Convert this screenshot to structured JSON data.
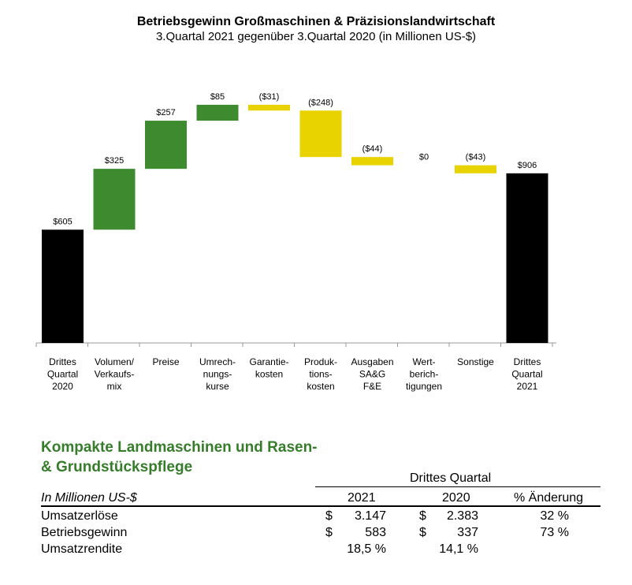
{
  "title": "Betriebsgewinn Großmaschinen & Präzisionslandwirtschaft",
  "subtitle": "3.Quartal 2021 gegenüber 3.Quartal 2020 (in Millionen US-$)",
  "chart_data": {
    "type": "waterfall",
    "title": "Betriebsgewinn Großmaschinen & Präzisionslandwirtschaft",
    "subtitle": "3.Quartal 2021 gegenüber 3.Quartal 2020 (in Millionen US-$)",
    "ylim": [
      0,
      1000
    ],
    "grid": false,
    "colors": {
      "total": "#000000",
      "increase": "#3d8a2f",
      "decrease": "#e8d200"
    },
    "steps": [
      {
        "category": "Drittes\nQuartal\n2020",
        "value": 605,
        "kind": "total",
        "label": "$605"
      },
      {
        "category": "Volumen/\nVerkaufs-\nmix",
        "value": 325,
        "kind": "increase",
        "label": "$325"
      },
      {
        "category": "Preise",
        "value": 257,
        "kind": "increase",
        "label": "$257"
      },
      {
        "category": "Umrech-\nnungs-\nkurse",
        "value": 85,
        "kind": "increase",
        "label": "$85"
      },
      {
        "category": "Garantie-\nkosten",
        "value": -31,
        "kind": "decrease",
        "label": "($31)"
      },
      {
        "category": "Produk-\ntions-\nkosten",
        "value": -248,
        "kind": "decrease",
        "label": "($248)"
      },
      {
        "category": "Ausgaben\nSA&G\nF&E",
        "value": -44,
        "kind": "decrease",
        "label": "($44)"
      },
      {
        "category": "Wert-\nberich-\ntigungen",
        "value": 0,
        "kind": "decrease",
        "label": "$0"
      },
      {
        "category": "Sonstige",
        "value": -43,
        "kind": "decrease",
        "label": "($43)"
      },
      {
        "category": "Drittes\nQuartal\n2021",
        "value": 906,
        "kind": "total",
        "label": "$906"
      }
    ]
  },
  "section": {
    "title": "Kompakte Landmaschinen und Rasen- & Grundstückspflege",
    "group_header": "Drittes Quartal",
    "unit_label": "In Millionen US-$",
    "col_2021": "2021",
    "col_2020": "2020",
    "col_change": "% Änderung",
    "rows": [
      {
        "label": "Umsatzerlöse",
        "cur_2021": "$",
        "v2021": "3.147",
        "cur_2020": "$",
        "v2020": "2.383",
        "change": "32 %"
      },
      {
        "label": "Betriebsgewinn",
        "cur_2021": "$",
        "v2021": "583",
        "cur_2020": "$",
        "v2020": "337",
        "change": "73 %"
      },
      {
        "label": "Umsatzrendite",
        "cur_2021": "",
        "v2021": "18,5 %",
        "cur_2020": "",
        "v2020": "14,1 %",
        "change": ""
      }
    ]
  }
}
